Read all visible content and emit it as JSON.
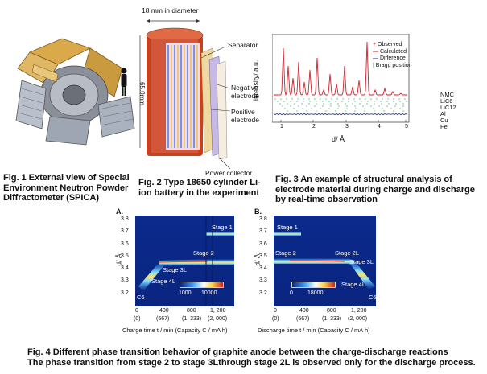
{
  "fig1": {
    "caption": "Fig. 1 External view of Special Environment Neutron Powder Diffractometer (SPICA)"
  },
  "fig2": {
    "diameter_label": "18 mm in diameter",
    "height_label": "65.0mm",
    "labels": {
      "separator": "Separator",
      "negative": "Negative electrode",
      "positive": "Positive electrode",
      "collector": "Power collector"
    },
    "caption": "Fig. 2 Type 18650 cylinder Li-ion battery in the experiment"
  },
  "fig3": {
    "ylabel": "Intensity/ a.u.",
    "xlabel": "d/ Å",
    "ticks": [
      "1",
      "2",
      "3",
      "4",
      "5"
    ],
    "legend": [
      "Observed",
      "Calculated",
      "Difference",
      "Bragg position"
    ],
    "phases": [
      "NMC",
      "LiC6",
      "LiC12",
      "Al",
      "Cu",
      "Fe"
    ],
    "caption": "Fig. 3 An example of structural analysis of electrode material during charge and discharge by real-time observation"
  },
  "fig4": {
    "panelA": {
      "letter": "A.",
      "ylabel": "d/ Å",
      "yticks": [
        "3.8",
        "3.7",
        "3.6",
        "3.5",
        "3.4",
        "3.3",
        "3.2"
      ],
      "xticks": [
        "0",
        "400",
        "800",
        "1, 200"
      ],
      "xticks2": [
        "(0)",
        "(667)",
        "(1, 333)",
        "(2, 000)"
      ],
      "xlabel": "Charge time t / min (Capacity C / mA h)",
      "stages": [
        "Stage 1",
        "Stage 2",
        "Stage 3L",
        "Stage 4L",
        "C6"
      ],
      "colorbar": [
        "1000",
        "10000"
      ]
    },
    "panelB": {
      "letter": "B.",
      "ylabel": "d/ Å",
      "yticks": [
        "3.8",
        "3.7",
        "3.6",
        "3.5",
        "3.4",
        "3.3",
        "3.2"
      ],
      "xticks": [
        "0",
        "400",
        "800",
        "1, 200"
      ],
      "xticks2": [
        "(0)",
        "(667)",
        "(1, 333)",
        "(2, 000)"
      ],
      "xlabel": "Discharge time t / min (Capacity C / mA h)",
      "stages": [
        "Stage 1",
        "Stage 2",
        "Stage 2L",
        "Stage 3L",
        "Stage 4L",
        "C6"
      ],
      "colorbar": [
        "0",
        "18000"
      ]
    },
    "caption_line1": "Fig. 4 Different phase transition behavior of graphite anode between the charge-discharge reactions",
    "caption_line2": "The phase transition from stage 2 to stage 3Lthrough stage 2L is observed only for the discharge process."
  }
}
